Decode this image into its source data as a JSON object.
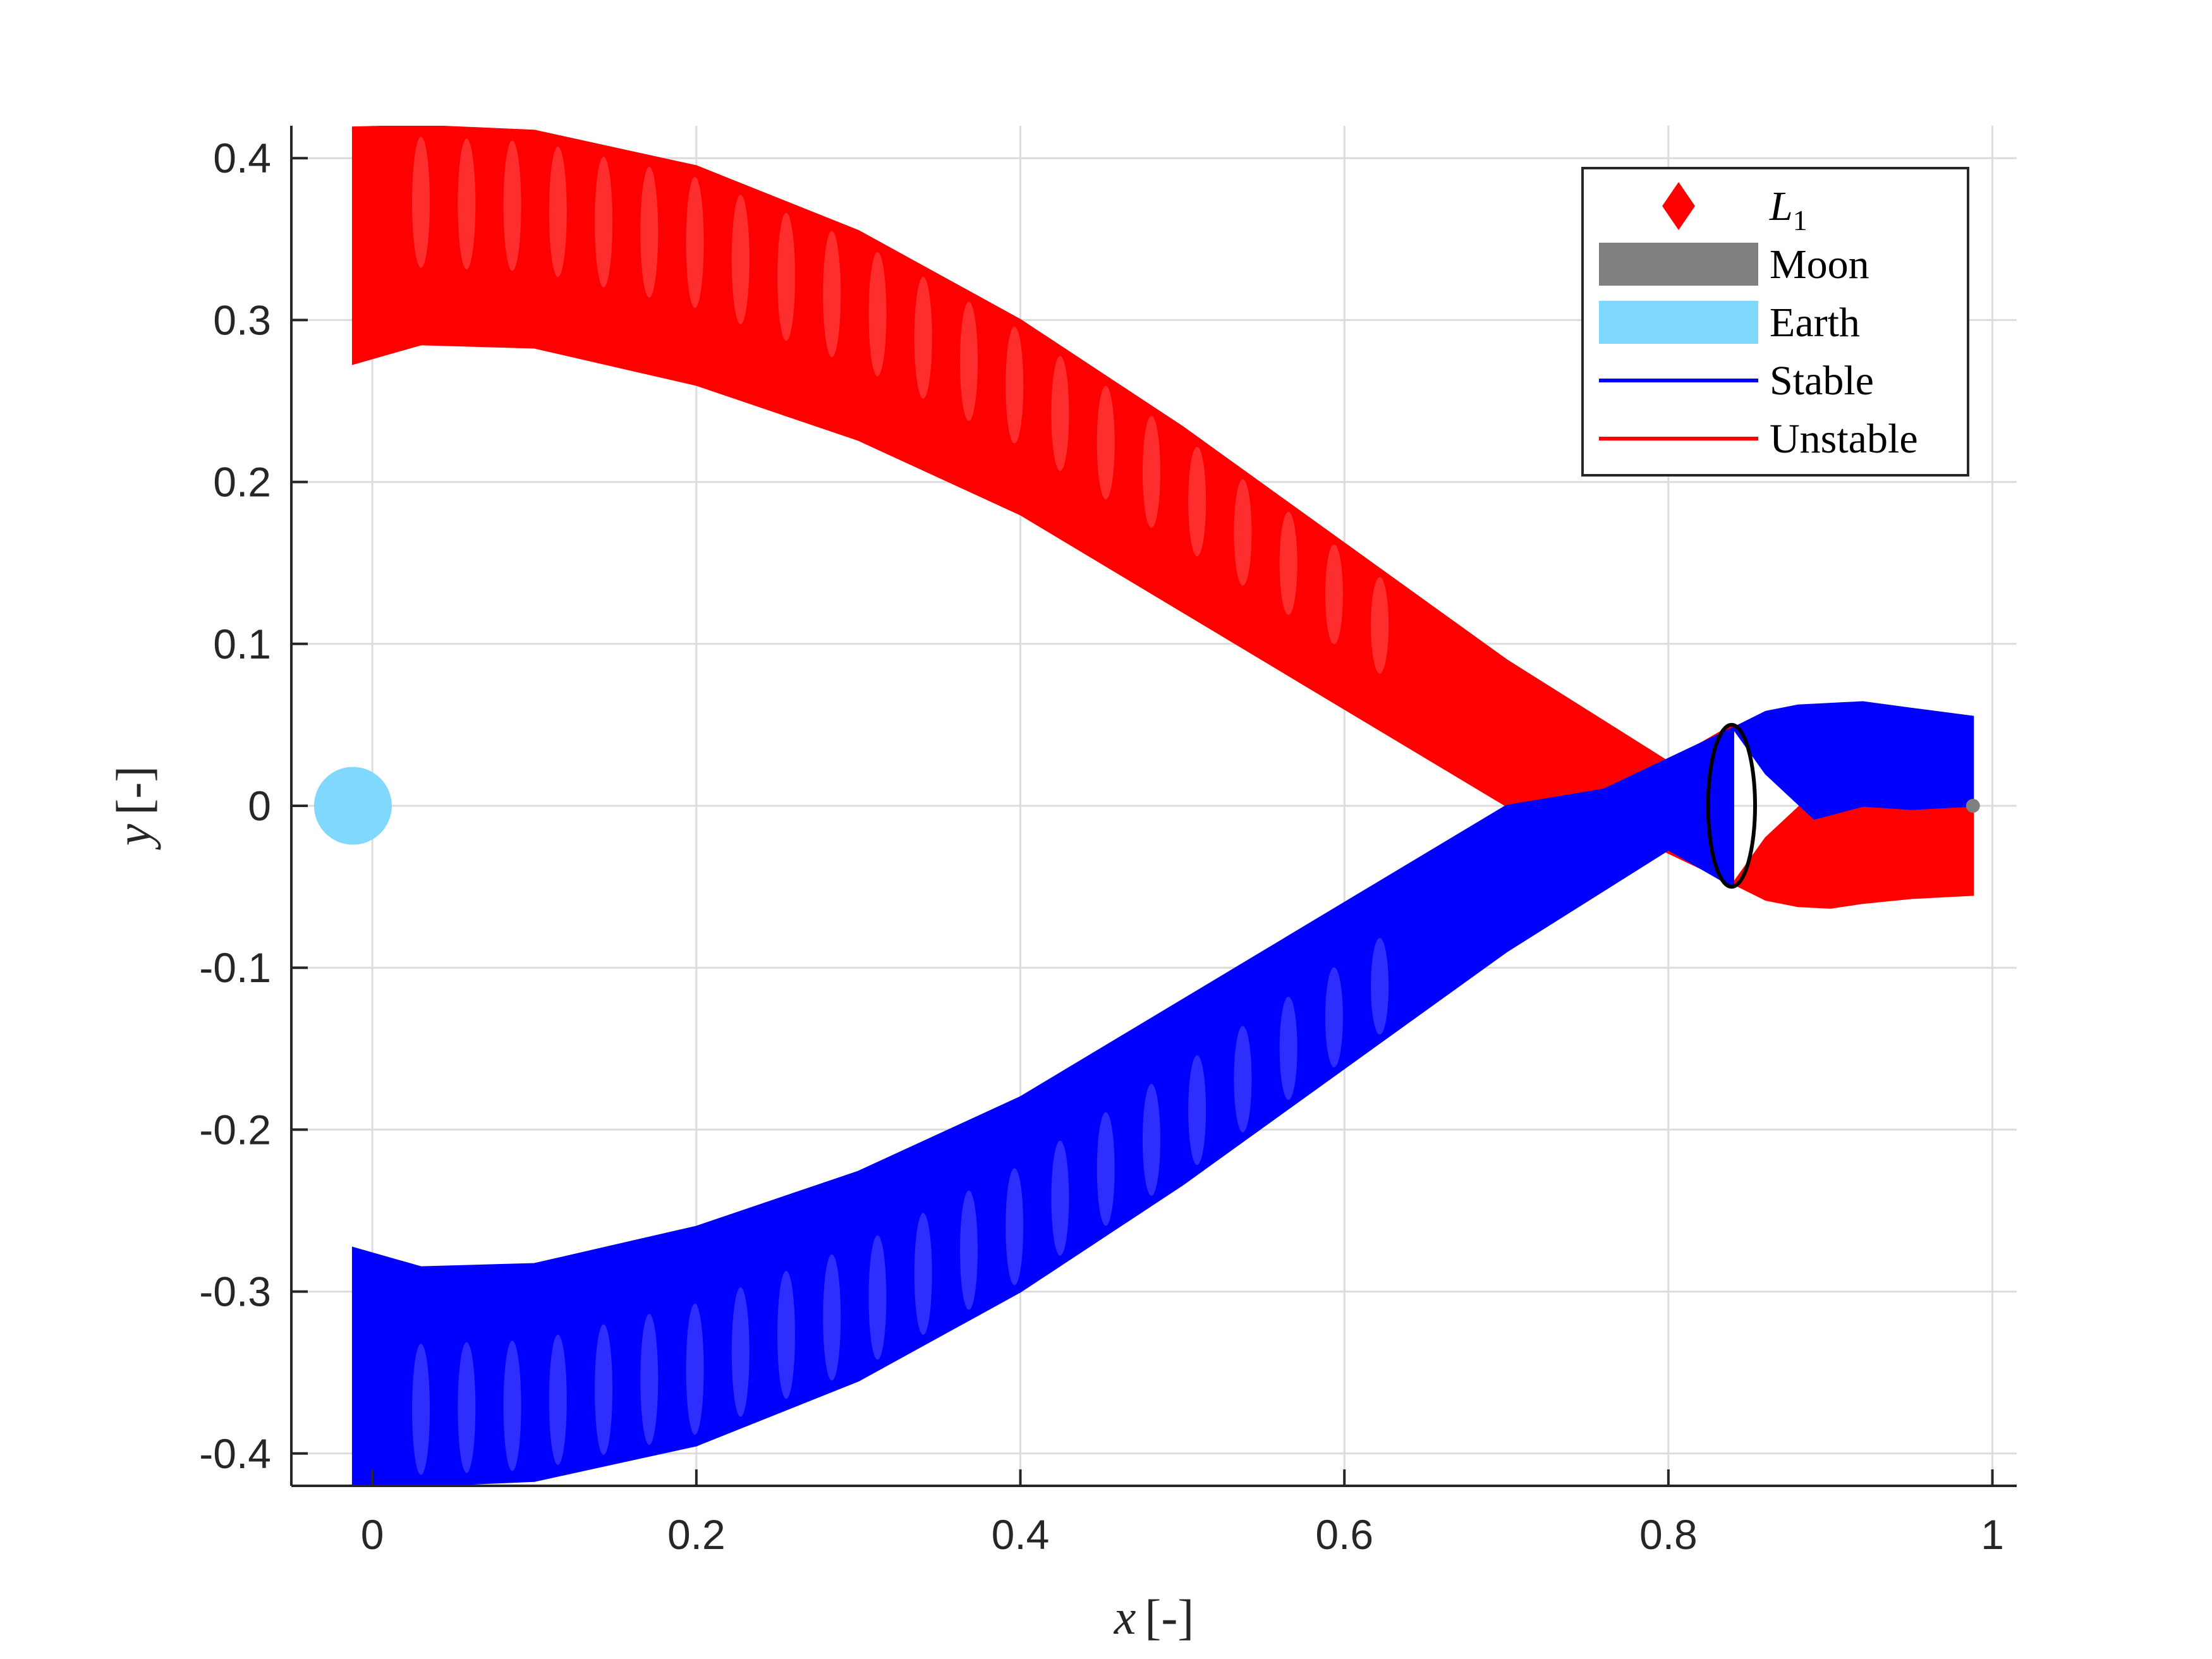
{
  "chart_data": {
    "type": "line",
    "title": "",
    "xlabel_var": "x",
    "xlabel_unit": "[-]",
    "ylabel_var": "y",
    "ylabel_unit": "[-]",
    "xlim": [
      -0.05,
      1.015
    ],
    "ylim": [
      -0.42,
      0.42
    ],
    "xticks": [
      0,
      0.2,
      0.4,
      0.6,
      0.8,
      1
    ],
    "xtick_labels": [
      "0",
      "0.2",
      "0.4",
      "0.6",
      "0.8",
      "1"
    ],
    "yticks": [
      -0.4,
      -0.3,
      -0.2,
      -0.1,
      0,
      0.1,
      0.2,
      0.3,
      0.4
    ],
    "ytick_labels": [
      "-0.4",
      "-0.3",
      "-0.2",
      "-0.1",
      "0",
      "0.1",
      "0.2",
      "0.3",
      "0.4"
    ],
    "grid": true,
    "legend_position": "top-right",
    "legend": [
      {
        "name": "L",
        "subscript": "1",
        "marker": "diamond",
        "color": "#ff0000"
      },
      {
        "name": "Moon",
        "marker": "patch",
        "color": "#808080"
      },
      {
        "name": "Earth",
        "marker": "patch",
        "color": "#80d8ff"
      },
      {
        "name": "Stable",
        "marker": "line",
        "color": "#0000ff"
      },
      {
        "name": "Unstable",
        "marker": "line",
        "color": "#ff0000"
      }
    ],
    "bodies": {
      "earth": {
        "x": -0.012,
        "y": 0,
        "radius": 0.016,
        "color": "#80d8ff"
      },
      "moon": {
        "x": 0.988,
        "y": 0,
        "radius": 0.004,
        "color": "#808080"
      }
    },
    "series": [
      {
        "name": "Unstable",
        "color": "#ff0000",
        "upper": {
          "x": [
            -0.012,
            0.03,
            0.1,
            0.2,
            0.3,
            0.4,
            0.5,
            0.6,
            0.7,
            0.8,
            0.84
          ],
          "y": [
            0.419,
            0.42,
            0.417,
            0.395,
            0.355,
            0.3,
            0.234,
            0.162,
            0.09,
            0.027,
            0.05
          ]
        },
        "lower": {
          "x": [
            -0.012,
            0.03,
            0.1,
            0.2,
            0.3,
            0.4,
            0.5,
            0.6,
            0.7,
            0.76,
            0.84
          ],
          "y": [
            0.273,
            0.285,
            0.283,
            0.26,
            0.226,
            0.18,
            0.12,
            0.06,
            0.0,
            -0.01,
            -0.048
          ]
        },
        "inner_branch": {
          "x": [
            0.84,
            0.86,
            0.88,
            0.9,
            0.92,
            0.95,
            0.988,
            0.988,
            0.95,
            0.92,
            0.89,
            0.86,
            0.84
          ],
          "y": [
            -0.048,
            -0.058,
            -0.062,
            -0.063,
            -0.06,
            -0.057,
            -0.055,
            0.0,
            0.002,
            0.0,
            0.008,
            -0.02,
            -0.048
          ]
        }
      },
      {
        "name": "Stable",
        "color": "#0000ff",
        "upper": {
          "x": [
            -0.012,
            0.03,
            0.1,
            0.2,
            0.3,
            0.4,
            0.5,
            0.6,
            0.7,
            0.76,
            0.84
          ],
          "y": [
            -0.273,
            -0.285,
            -0.283,
            -0.26,
            -0.226,
            -0.18,
            -0.12,
            -0.06,
            0.0,
            0.01,
            0.048
          ]
        },
        "lower": {
          "x": [
            -0.012,
            0.03,
            0.1,
            0.2,
            0.3,
            0.4,
            0.5,
            0.6,
            0.7,
            0.8,
            0.84
          ],
          "y": [
            -0.419,
            -0.42,
            -0.417,
            -0.395,
            -0.355,
            -0.3,
            -0.234,
            -0.162,
            -0.09,
            -0.027,
            -0.05
          ]
        },
        "inner_branch": {
          "x": [
            0.84,
            0.86,
            0.88,
            0.9,
            0.92,
            0.95,
            0.988,
            0.988,
            0.95,
            0.92,
            0.89,
            0.86,
            0.84
          ],
          "y": [
            0.048,
            0.058,
            0.062,
            0.063,
            0.064,
            0.06,
            0.055,
            0.0,
            -0.002,
            0.0,
            -0.008,
            0.02,
            0.048
          ]
        }
      }
    ],
    "orbit": {
      "name": "Lyapunov orbit",
      "color": "#000000",
      "cx": 0.839,
      "cy": 0,
      "rx": 0.0145,
      "ry": 0.05
    }
  }
}
